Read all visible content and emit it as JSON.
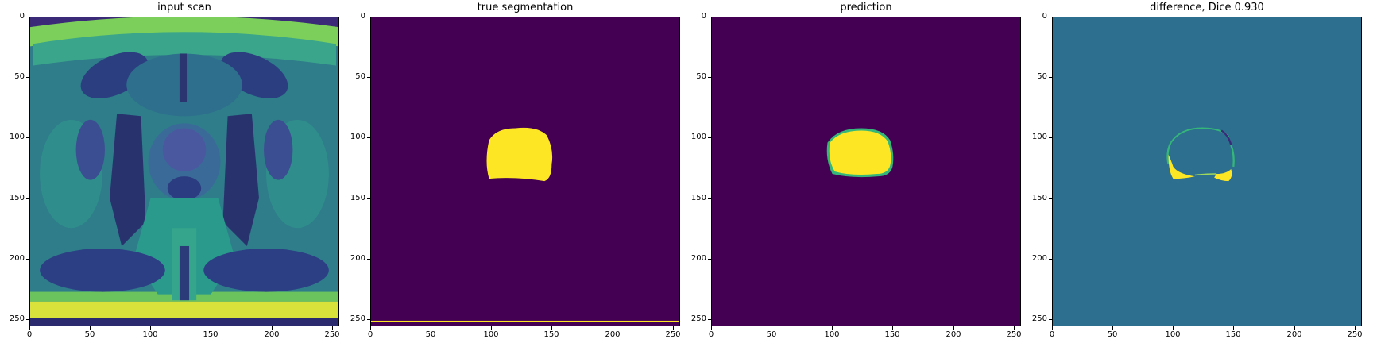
{
  "panels": [
    {
      "title": "input scan"
    },
    {
      "title": "true segmentation"
    },
    {
      "title": "prediction"
    },
    {
      "title": "difference, Dice 0.930"
    }
  ],
  "axes": {
    "xticks": [
      "0",
      "50",
      "100",
      "150",
      "200",
      "250"
    ],
    "yticks": [
      "0",
      "50",
      "100",
      "150",
      "200",
      "250"
    ],
    "xlim": [
      0,
      256
    ],
    "ylim": [
      256,
      0
    ]
  },
  "colors": {
    "viridis_dark": "#440154",
    "viridis_teal": "#2c6f8e",
    "viridis_green": "#35b779",
    "viridis_yellow": "#fde725"
  }
}
